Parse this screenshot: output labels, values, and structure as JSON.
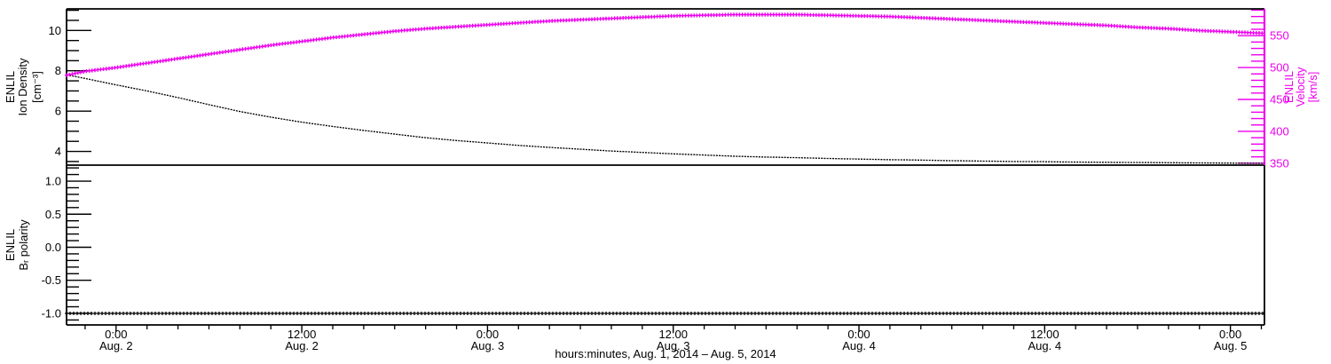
{
  "figure_title": "",
  "colors": {
    "background": "#ffffff",
    "black": "#000000",
    "magenta": "#ee00ee"
  },
  "chart_data": {
    "type": "line",
    "title": "",
    "x": {
      "title": "hours:minutes, Aug.  1, 2014 – Aug.  5, 2014",
      "units": "hours since Aug 1, 2014 00:00",
      "range_hours": [
        20.8,
        98.2
      ],
      "major_tick_hours": [
        24,
        36,
        48,
        60,
        72,
        84,
        96
      ],
      "major_tick_labels": [
        [
          "0:00",
          "Aug. 2"
        ],
        [
          "12:00",
          "Aug. 2"
        ],
        [
          "0:00",
          "Aug. 3"
        ],
        [
          "12:00",
          "Aug. 3"
        ],
        [
          "0:00",
          "Aug. 4"
        ],
        [
          "12:00",
          "Aug. 4"
        ],
        [
          "0:00",
          "Aug. 5"
        ]
      ],
      "minor_tick_step_hours": 2
    },
    "t_hours": [
      20.8,
      22,
      24,
      26,
      28,
      30,
      32,
      34,
      36,
      38,
      40,
      42,
      44,
      46,
      48,
      50,
      52,
      54,
      56,
      58,
      60,
      62,
      64,
      66,
      68,
      70,
      72,
      74,
      76,
      78,
      80,
      82,
      84,
      86,
      88,
      90,
      92,
      94,
      96,
      98,
      98.2
    ],
    "top_panel": {
      "left_axis": {
        "label_lines": [
          "ENLIL",
          "Ion Density",
          "[cm⁻³]"
        ],
        "range": [
          3.32,
          11.07
        ],
        "major_ticks": [
          4,
          6,
          8,
          10
        ],
        "major_tick_labels": [
          "4",
          "6",
          "8",
          "10"
        ],
        "minor_step": 0.5,
        "color": "#000000"
      },
      "right_axis": {
        "label_lines": [
          "ENLIL",
          "Velocity",
          "[km/s]"
        ],
        "range": [
          347,
          592
        ],
        "major_ticks": [
          350,
          400,
          450,
          500,
          550
        ],
        "major_tick_labels": [
          "350",
          "400",
          "450",
          "500",
          "550"
        ],
        "minor_step": 10,
        "color": "#ee00ee"
      },
      "series": [
        {
          "name": "ion_density",
          "axis": "left",
          "color": "#000000",
          "marker": "dotted-line",
          "values": [
            7.8,
            7.62,
            7.3,
            7.0,
            6.67,
            6.32,
            5.98,
            5.7,
            5.45,
            5.24,
            5.04,
            4.86,
            4.68,
            4.54,
            4.42,
            4.3,
            4.2,
            4.11,
            4.02,
            3.95,
            3.88,
            3.82,
            3.76,
            3.72,
            3.69,
            3.65,
            3.62,
            3.59,
            3.57,
            3.54,
            3.52,
            3.5,
            3.49,
            3.47,
            3.46,
            3.45,
            3.44,
            3.43,
            3.42,
            3.41,
            3.41
          ]
        },
        {
          "name": "velocity",
          "axis": "right",
          "color": "#ee00ee",
          "marker": "plus",
          "values": [
            488,
            494,
            500,
            507,
            514,
            521,
            528,
            535,
            541,
            547,
            552,
            557,
            561,
            564,
            567,
            570,
            573,
            575,
            577,
            579,
            581,
            582,
            583,
            583,
            583,
            582,
            581,
            580,
            578,
            576,
            574,
            572,
            570,
            568,
            566,
            563,
            561,
            558,
            556,
            554,
            554
          ]
        }
      ]
    },
    "bottom_panel": {
      "left_axis": {
        "label_lines": [
          "ENLIL",
          "Bᵣ polarity"
        ],
        "range": [
          -1.175,
          1.242
        ],
        "major_ticks": [
          -1.0,
          -0.5,
          0.0,
          0.5,
          1.0
        ],
        "major_tick_labels": [
          "-1.0",
          "-0.5",
          "0.0",
          "0.5",
          "1.0"
        ],
        "minor_step": 0.1,
        "color": "#000000"
      },
      "series": [
        {
          "name": "br_polarity",
          "axis": "left",
          "color": "#000000",
          "marker": "plus",
          "constant_value": -1.0,
          "values_note": "constant -1.0 across entire time range"
        }
      ]
    }
  }
}
